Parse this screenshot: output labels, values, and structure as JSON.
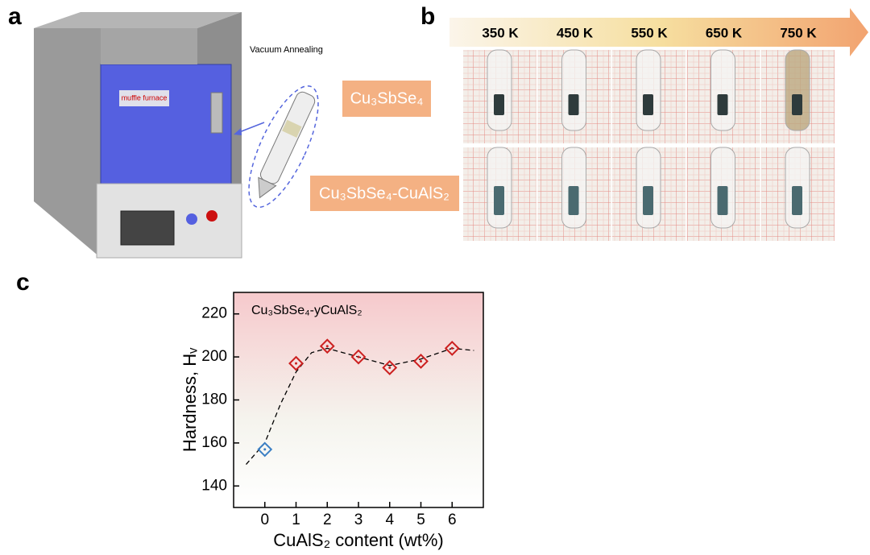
{
  "panel_labels": {
    "a": "a",
    "b": "b",
    "c": "c"
  },
  "panel_a": {
    "furnace_label": "muffle furnace",
    "process": "Vacuum Annealing",
    "samples": [
      "Cu₃SbSe₄",
      "Cu₃SbSe₄-CuAlS₂"
    ]
  },
  "panel_b": {
    "temperatures": [
      "350 K",
      "450 K",
      "550 K",
      "650 K",
      "750 K"
    ]
  },
  "chart_data": {
    "type": "scatter",
    "annotation": "Cu₃SbSe₄-yCuAlS₂",
    "xlabel": "CuAlS₂ content (wt%)",
    "ylabel": "Hardness, Hᵥ",
    "x": [
      0,
      1,
      2,
      3,
      4,
      5,
      6
    ],
    "values": [
      157,
      197,
      205,
      200,
      195,
      198,
      204
    ],
    "colors": [
      "#3b7fc4",
      "#cc2020",
      "#cc2020",
      "#cc2020",
      "#cc2020",
      "#cc2020",
      "#cc2020"
    ],
    "fit": {
      "x": [
        -0.6,
        0,
        0.5,
        1,
        1.5,
        2,
        3,
        4,
        5,
        6,
        6.7
      ],
      "values": [
        150,
        160,
        178,
        193,
        202,
        204,
        200,
        196,
        199,
        204,
        203
      ]
    },
    "xlim": [
      -1,
      7
    ],
    "ylim": [
      130,
      230
    ],
    "xticks": [
      0,
      1,
      2,
      3,
      4,
      5,
      6
    ],
    "yticks": [
      140,
      160,
      180,
      200,
      220
    ]
  }
}
